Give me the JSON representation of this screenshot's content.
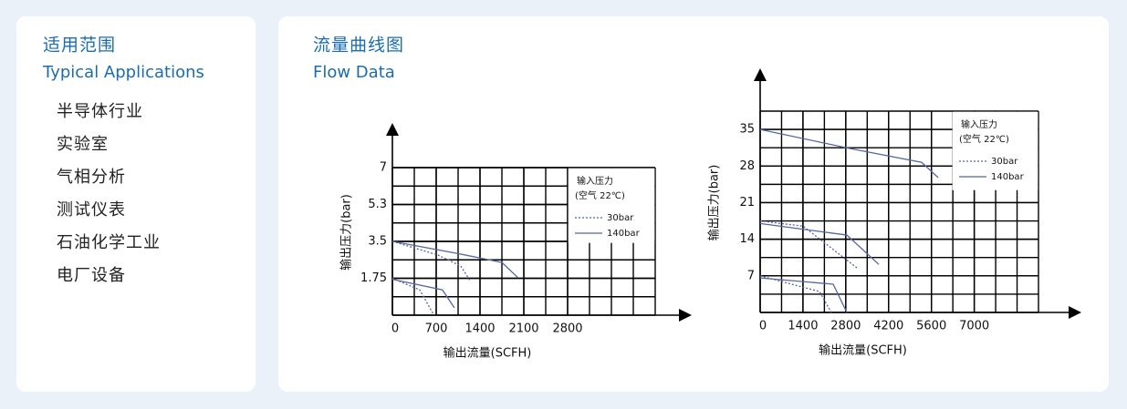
{
  "applications": {
    "title": "适用范围",
    "subtitle": "Typical Applications",
    "items": [
      "半导体行业",
      "实验室",
      "气相分析",
      "测试仪表",
      "石油化学工业",
      "电厂设备"
    ]
  },
  "flow": {
    "title": "流量曲线图",
    "subtitle": "Flow Data"
  },
  "chart_data": [
    {
      "type": "line",
      "xlabel": "输出流量(SCFH)",
      "ylabel": "输出压力(bar)",
      "legend_title": "输入压力",
      "legend_subtitle": "(空气 22℃)",
      "legend": "upper right",
      "grid": true,
      "xlim": [
        0,
        4200
      ],
      "xticks": [
        0,
        700,
        1400,
        2100,
        2800
      ],
      "ylim": [
        0,
        7
      ],
      "yticks": [
        0,
        1.75,
        3.5,
        {
          "value": 5.25,
          "label": "5.3"
        },
        7
      ],
      "series": [
        {
          "name": "30bar",
          "color": "#5566a0",
          "dashed": true,
          "curves": [
            {
              "x": [
                0,
                730,
                1093,
                1240
              ],
              "values": [
                3.5,
                2.85,
                2.33,
                1.64
              ]
            },
            {
              "x": [
                0,
                437,
                656
              ],
              "values": [
                1.75,
                1.2,
                0.04
              ]
            }
          ]
        },
        {
          "name": "140bar",
          "color": "#5566a0",
          "dashed": false,
          "curves": [
            {
              "x": [
                0,
                1020,
                1750,
                2010
              ],
              "values": [
                3.5,
                2.94,
                2.5,
                1.77
              ]
            },
            {
              "x": [
                0,
                800,
                990
              ],
              "values": [
                1.7,
                1.2,
                0.35
              ]
            }
          ]
        }
      ]
    },
    {
      "type": "line",
      "xlabel": "输出流量(SCFH)",
      "ylabel": "输出压力(bar)",
      "legend_title": "输入压力",
      "legend_subtitle": "(空气 22℃)",
      "legend": "upper right",
      "grid": true,
      "xlim": [
        0,
        9100
      ],
      "xticks": [
        0,
        1400,
        2800,
        4200,
        5600,
        7000
      ],
      "ylim": [
        0,
        38.5
      ],
      "yticks": [
        0,
        7,
        14,
        21,
        28,
        35
      ],
      "series": [
        {
          "name": "30bar",
          "color": "#5566a0",
          "dashed": true,
          "curves": [
            {
              "x": [
                0,
                1402,
                3192
              ],
              "values": [
                17.5,
                16.5,
                8.4
              ]
            },
            {
              "x": [
                0,
                1939,
                2327
              ],
              "values": [
                7,
                4,
                0
              ]
            }
          ]
        },
        {
          "name": "140bar",
          "color": "#5566a0",
          "dashed": false,
          "curves": [
            {
              "x": [
                0,
                2894,
                5280,
                5818
              ],
              "values": [
                35,
                31.4,
                28.7,
                25.8
              ]
            },
            {
              "x": [
                0,
                2834,
                3878
              ],
              "values": [
                17,
                14.8,
                9.2
              ]
            },
            {
              "x": [
                0,
                2387,
                2834
              ],
              "values": [
                6.6,
                5.4,
                0
              ]
            }
          ]
        }
      ]
    }
  ]
}
